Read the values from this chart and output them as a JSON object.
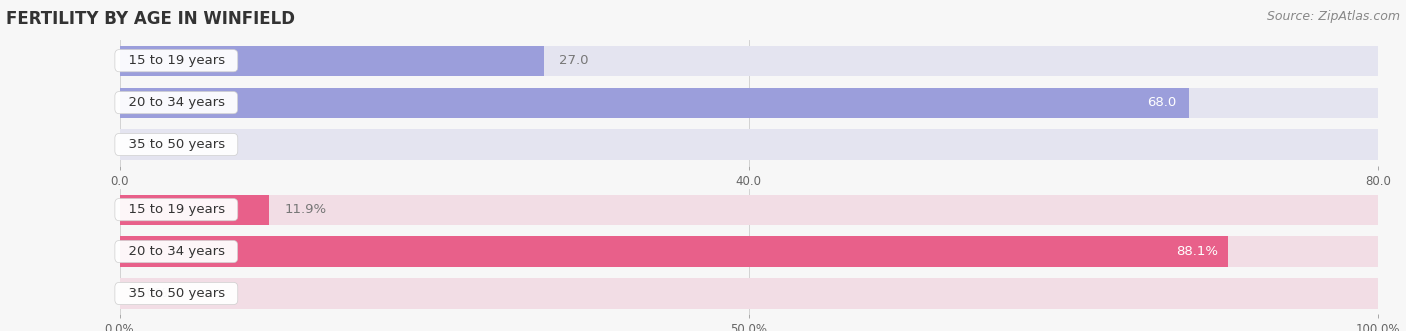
{
  "title": "FERTILITY BY AGE IN WINFIELD",
  "source": "Source: ZipAtlas.com",
  "top_chart": {
    "categories": [
      "15 to 19 years",
      "20 to 34 years",
      "35 to 50 years"
    ],
    "values": [
      27.0,
      68.0,
      0.0
    ],
    "xlim": [
      0,
      80.0
    ],
    "xticks": [
      0.0,
      40.0,
      80.0
    ],
    "xtick_labels": [
      "0.0",
      "40.0",
      "80.0"
    ],
    "bar_color": "#9b9edb",
    "bar_bg_color": "#e4e4f0",
    "label_inside_color": "#ffffff",
    "label_outside_color": "#777777",
    "label_threshold": 55
  },
  "bottom_chart": {
    "categories": [
      "15 to 19 years",
      "20 to 34 years",
      "35 to 50 years"
    ],
    "values": [
      11.9,
      88.1,
      0.0
    ],
    "xlim": [
      0,
      100.0
    ],
    "xticks": [
      0.0,
      50.0,
      100.0
    ],
    "xtick_labels": [
      "0.0%",
      "50.0%",
      "100.0%"
    ],
    "bar_color": "#e8608a",
    "bar_bg_color": "#f2dde5",
    "label_inside_color": "#ffffff",
    "label_outside_color": "#777777",
    "label_threshold": 75
  },
  "fig_bg_color": "#f7f7f7",
  "bar_height": 0.72,
  "label_fontsize": 9.5,
  "category_fontsize": 9.5,
  "title_fontsize": 12,
  "source_fontsize": 9
}
